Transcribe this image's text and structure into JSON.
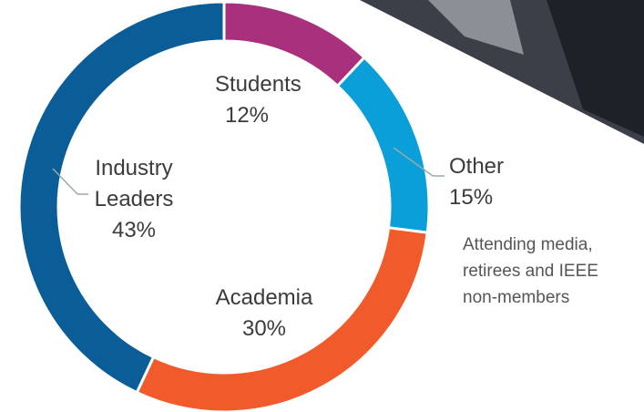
{
  "chart_data": {
    "type": "donut",
    "categories": [
      "Students",
      "Other",
      "Academia",
      "Industry Leaders"
    ],
    "values": [
      12,
      15,
      30,
      43
    ],
    "value_labels": [
      "12%",
      "15%",
      "30%",
      "43%"
    ],
    "colors": [
      "#a8307c",
      "#0a9fd9",
      "#f15a2b",
      "#0b5d98"
    ],
    "note": "Attending media, retirees and IEEE non-members"
  }
}
